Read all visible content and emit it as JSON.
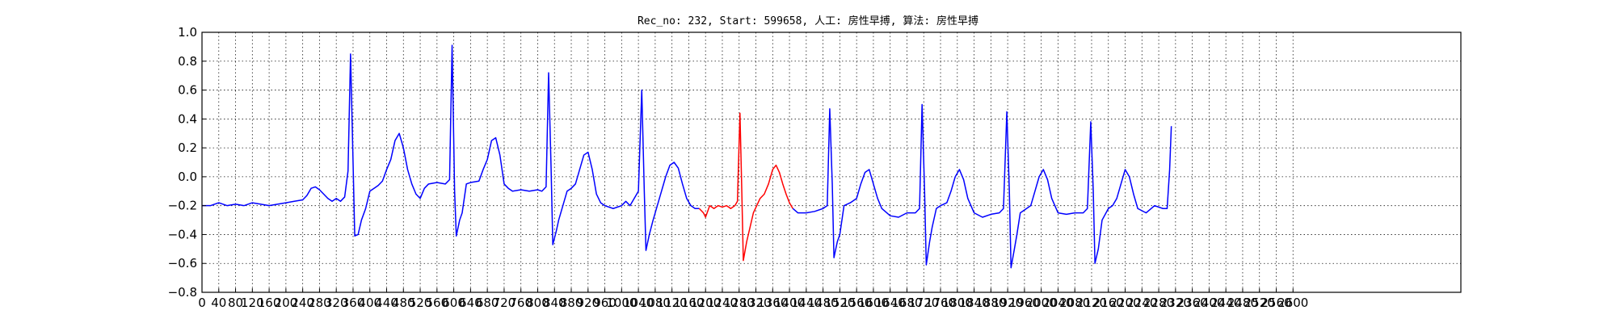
{
  "chart_data": {
    "type": "line",
    "title": "Rec_no: 232, Start: 599658, 人工: 房性早搏, 算法: 房性早搏",
    "xlabel": "",
    "ylabel": "",
    "xlim": [
      0,
      3000
    ],
    "ylim": [
      -0.8,
      1.0
    ],
    "grid": true,
    "x_ticks": [
      0,
      40,
      80,
      120,
      160,
      200,
      240,
      280,
      320,
      360,
      400,
      440,
      480,
      520,
      560,
      600,
      640,
      680,
      720,
      760,
      800,
      840,
      880,
      920,
      960,
      1000,
      1040,
      1080,
      1120,
      1160,
      1200,
      1240,
      1280,
      1320,
      1360,
      1400,
      1440,
      1480,
      1520,
      1560,
      1600,
      1640,
      1680,
      1720,
      1760,
      1800,
      1840,
      1880,
      1920,
      1960,
      2000,
      2040,
      2080,
      2120,
      2160,
      2200,
      2240,
      2280,
      2320,
      2360,
      2400,
      2440,
      2480,
      2520,
      2560,
      2600
    ],
    "x_tick_labels": [
      "0",
      "40",
      "80",
      "120",
      "160",
      "200",
      "240",
      "280",
      "320",
      "360",
      "400",
      "440",
      "480",
      "520",
      "560",
      "600",
      "640",
      "680",
      "720",
      "760",
      "800",
      "840",
      "880",
      "920",
      "960",
      "1000",
      "1040",
      "1080",
      "1120",
      "1160",
      "1200",
      "1240",
      "1280",
      "1320",
      "1360",
      "1400",
      "1440",
      "1480",
      "1520",
      "1560",
      "1600",
      "1640",
      "1680",
      "1720",
      "1760",
      "1800",
      "1840",
      "1880",
      "1920",
      "1960",
      "2000",
      "2040",
      "2080",
      "2120",
      "2160",
      "2200",
      "2240",
      "2280",
      "2320",
      "2360",
      "2400",
      "2440",
      "2480",
      "2520",
      "2560",
      "2600"
    ],
    "y_ticks": [
      -0.8,
      -0.6,
      -0.4,
      -0.2,
      0.0,
      0.2,
      0.4,
      0.6,
      0.8,
      1.0
    ],
    "y_tick_labels": [
      "−0.8",
      "−0.6",
      "−0.4",
      "−0.2",
      "0.0",
      "0.2",
      "0.4",
      "0.6",
      "0.8",
      "1.0"
    ],
    "series": [
      {
        "color": "#0000ff",
        "points": [
          [
            0,
            -0.2
          ],
          [
            20,
            -0.2
          ],
          [
            40,
            -0.18
          ],
          [
            60,
            -0.2
          ],
          [
            80,
            -0.19
          ],
          [
            100,
            -0.2
          ],
          [
            120,
            -0.18
          ],
          [
            140,
            -0.19
          ],
          [
            160,
            -0.2
          ],
          [
            180,
            -0.19
          ],
          [
            200,
            -0.18
          ],
          [
            220,
            -0.17
          ],
          [
            240,
            -0.16
          ],
          [
            250,
            -0.13
          ],
          [
            260,
            -0.08
          ],
          [
            270,
            -0.07
          ],
          [
            280,
            -0.09
          ],
          [
            290,
            -0.12
          ],
          [
            300,
            -0.15
          ],
          [
            310,
            -0.17
          ],
          [
            320,
            -0.15
          ],
          [
            330,
            -0.17
          ],
          [
            340,
            -0.14
          ],
          [
            348,
            0.04
          ],
          [
            354,
            0.85
          ],
          [
            360,
            0.1
          ],
          [
            364,
            -0.41
          ],
          [
            372,
            -0.4
          ],
          [
            380,
            -0.3
          ],
          [
            390,
            -0.22
          ],
          [
            400,
            -0.1
          ],
          [
            410,
            -0.08
          ],
          [
            420,
            -0.06
          ],
          [
            430,
            -0.03
          ],
          [
            440,
            0.05
          ],
          [
            450,
            0.12
          ],
          [
            460,
            0.25
          ],
          [
            470,
            0.3
          ],
          [
            480,
            0.2
          ],
          [
            490,
            0.05
          ],
          [
            500,
            -0.05
          ],
          [
            510,
            -0.12
          ],
          [
            520,
            -0.15
          ],
          [
            530,
            -0.08
          ],
          [
            540,
            -0.05
          ],
          [
            560,
            -0.04
          ],
          [
            580,
            -0.05
          ],
          [
            590,
            -0.02
          ],
          [
            596,
            0.91
          ],
          [
            602,
            -0.1
          ],
          [
            606,
            -0.41
          ],
          [
            614,
            -0.3
          ],
          [
            620,
            -0.25
          ],
          [
            630,
            -0.05
          ],
          [
            640,
            -0.04
          ],
          [
            660,
            -0.03
          ],
          [
            670,
            0.05
          ],
          [
            680,
            0.12
          ],
          [
            690,
            0.25
          ],
          [
            700,
            0.27
          ],
          [
            710,
            0.15
          ],
          [
            720,
            -0.05
          ],
          [
            730,
            -0.08
          ],
          [
            740,
            -0.1
          ],
          [
            760,
            -0.09
          ],
          [
            780,
            -0.1
          ],
          [
            800,
            -0.09
          ],
          [
            810,
            -0.1
          ],
          [
            820,
            -0.07
          ],
          [
            826,
            0.72
          ],
          [
            832,
            0.05
          ],
          [
            836,
            -0.47
          ],
          [
            844,
            -0.38
          ],
          [
            850,
            -0.3
          ],
          [
            860,
            -0.2
          ],
          [
            870,
            -0.1
          ],
          [
            880,
            -0.08
          ],
          [
            890,
            -0.05
          ],
          [
            900,
            0.05
          ],
          [
            910,
            0.15
          ],
          [
            920,
            0.17
          ],
          [
            930,
            0.05
          ],
          [
            940,
            -0.12
          ],
          [
            950,
            -0.18
          ],
          [
            960,
            -0.2
          ],
          [
            980,
            -0.22
          ],
          [
            1000,
            -0.2
          ],
          [
            1010,
            -0.17
          ],
          [
            1020,
            -0.2
          ],
          [
            1030,
            -0.15
          ],
          [
            1040,
            -0.1
          ],
          [
            1048,
            0.6
          ],
          [
            1054,
            -0.1
          ],
          [
            1058,
            -0.51
          ],
          [
            1066,
            -0.4
          ],
          [
            1075,
            -0.3
          ],
          [
            1085,
            -0.2
          ],
          [
            1095,
            -0.1
          ],
          [
            1105,
            0.0
          ],
          [
            1115,
            0.08
          ],
          [
            1125,
            0.1
          ],
          [
            1135,
            0.06
          ],
          [
            1145,
            -0.05
          ],
          [
            1155,
            -0.15
          ],
          [
            1165,
            -0.2
          ],
          [
            1175,
            -0.22
          ],
          [
            1185,
            -0.22
          ]
        ]
      },
      {
        "color": "#ff0000",
        "points": [
          [
            1185,
            -0.22
          ],
          [
            1195,
            -0.25
          ],
          [
            1200,
            -0.28
          ],
          [
            1210,
            -0.2
          ],
          [
            1220,
            -0.22
          ],
          [
            1230,
            -0.2
          ],
          [
            1240,
            -0.21
          ],
          [
            1250,
            -0.2
          ],
          [
            1260,
            -0.22
          ],
          [
            1270,
            -0.2
          ],
          [
            1276,
            -0.17
          ],
          [
            1282,
            0.44
          ],
          [
            1286,
            -0.05
          ],
          [
            1290,
            -0.58
          ],
          [
            1298,
            -0.45
          ],
          [
            1306,
            -0.35
          ],
          [
            1314,
            -0.25
          ],
          [
            1322,
            -0.2
          ],
          [
            1330,
            -0.15
          ],
          [
            1340,
            -0.12
          ],
          [
            1350,
            -0.05
          ],
          [
            1360,
            0.05
          ],
          [
            1368,
            0.08
          ],
          [
            1376,
            0.03
          ],
          [
            1384,
            -0.05
          ],
          [
            1392,
            -0.12
          ],
          [
            1400,
            -0.18
          ],
          [
            1408,
            -0.22
          ]
        ]
      },
      {
        "color": "#0000ff",
        "points": [
          [
            1408,
            -0.22
          ],
          [
            1420,
            -0.25
          ],
          [
            1440,
            -0.25
          ],
          [
            1460,
            -0.24
          ],
          [
            1480,
            -0.22
          ],
          [
            1490,
            -0.2
          ],
          [
            1496,
            0.47
          ],
          [
            1502,
            -0.05
          ],
          [
            1506,
            -0.56
          ],
          [
            1514,
            -0.45
          ],
          [
            1520,
            -0.4
          ],
          [
            1530,
            -0.2
          ],
          [
            1545,
            -0.18
          ],
          [
            1560,
            -0.15
          ],
          [
            1570,
            -0.05
          ],
          [
            1580,
            0.03
          ],
          [
            1590,
            0.05
          ],
          [
            1600,
            -0.05
          ],
          [
            1610,
            -0.15
          ],
          [
            1620,
            -0.22
          ],
          [
            1640,
            -0.27
          ],
          [
            1660,
            -0.28
          ],
          [
            1680,
            -0.25
          ],
          [
            1700,
            -0.25
          ],
          [
            1710,
            -0.22
          ],
          [
            1716,
            0.5
          ],
          [
            1722,
            -0.1
          ],
          [
            1726,
            -0.61
          ],
          [
            1734,
            -0.45
          ],
          [
            1740,
            -0.35
          ],
          [
            1750,
            -0.22
          ],
          [
            1760,
            -0.2
          ],
          [
            1775,
            -0.18
          ],
          [
            1785,
            -0.1
          ],
          [
            1795,
            0.0
          ],
          [
            1805,
            0.05
          ],
          [
            1815,
            -0.02
          ],
          [
            1825,
            -0.15
          ],
          [
            1840,
            -0.25
          ],
          [
            1860,
            -0.28
          ],
          [
            1880,
            -0.26
          ],
          [
            1900,
            -0.25
          ],
          [
            1910,
            -0.22
          ],
          [
            1918,
            0.45
          ],
          [
            1924,
            -0.1
          ],
          [
            1928,
            -0.63
          ],
          [
            1936,
            -0.5
          ],
          [
            1942,
            -0.4
          ],
          [
            1950,
            -0.25
          ],
          [
            1965,
            -0.22
          ],
          [
            1975,
            -0.2
          ],
          [
            1985,
            -0.1
          ],
          [
            1995,
            0.0
          ],
          [
            2005,
            0.05
          ],
          [
            2015,
            -0.02
          ],
          [
            2025,
            -0.15
          ],
          [
            2040,
            -0.25
          ],
          [
            2060,
            -0.26
          ],
          [
            2080,
            -0.25
          ],
          [
            2100,
            -0.25
          ],
          [
            2110,
            -0.22
          ],
          [
            2118,
            0.38
          ],
          [
            2124,
            -0.1
          ],
          [
            2128,
            -0.6
          ],
          [
            2136,
            -0.5
          ],
          [
            2145,
            -0.3
          ],
          [
            2160,
            -0.22
          ],
          [
            2170,
            -0.2
          ],
          [
            2180,
            -0.15
          ],
          [
            2190,
            -0.05
          ],
          [
            2200,
            0.05
          ],
          [
            2210,
            0.0
          ],
          [
            2220,
            -0.12
          ],
          [
            2230,
            -0.22
          ],
          [
            2250,
            -0.25
          ],
          [
            2270,
            -0.2
          ],
          [
            2290,
            -0.22
          ],
          [
            2300,
            -0.22
          ],
          [
            2306,
            0.05
          ],
          [
            2310,
            0.35
          ]
        ]
      }
    ]
  }
}
